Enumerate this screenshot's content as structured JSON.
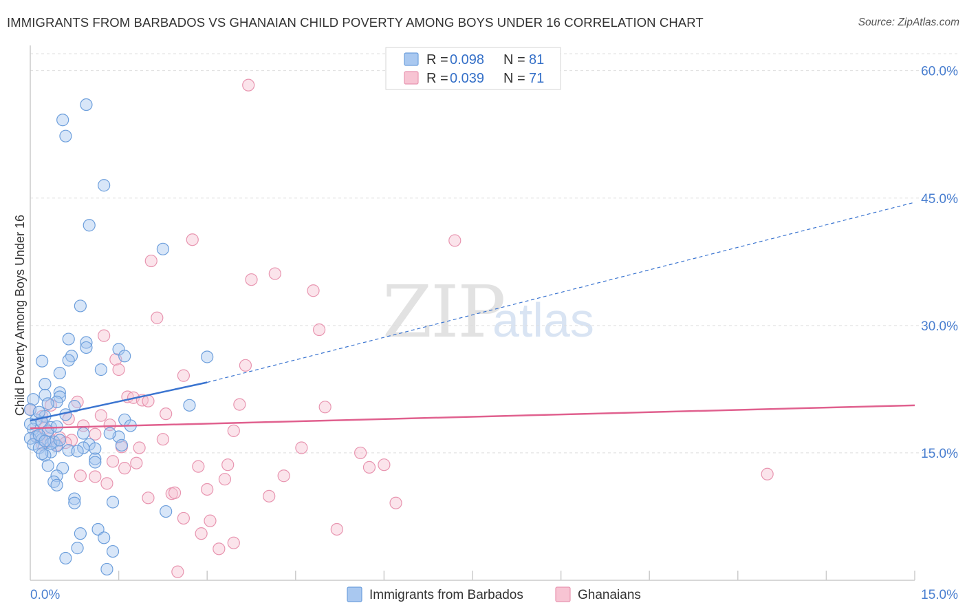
{
  "title": "IMMIGRANTS FROM BARBADOS VS GHANAIAN CHILD POVERTY AMONG BOYS UNDER 16 CORRELATION CHART",
  "source": "Source: ZipAtlas.com",
  "watermark": {
    "zip": "ZIP",
    "atlas": "atlas"
  },
  "colors": {
    "blue_fill": "#a9c8f0",
    "blue_stroke": "#6d9fdc",
    "blue_line": "#3a74d0",
    "pink_fill": "#f7c4d3",
    "pink_stroke": "#e895b0",
    "pink_line": "#e0608e",
    "grid": "#dddddd",
    "axis": "#cccccc",
    "tick_text": "#4a7fd0"
  },
  "legend": {
    "rows": [
      {
        "r_label": "R =",
        "r_value": "0.098",
        "n_label": "N =",
        "n_value": "81"
      },
      {
        "r_label": "R =",
        "r_value": "0.039",
        "n_label": "N =",
        "n_value": "71"
      }
    ]
  },
  "chart_data": {
    "type": "scatter",
    "title": "IMMIGRANTS FROM BARBADOS VS GHANAIAN CHILD POVERTY AMONG BOYS UNDER 16 CORRELATION CHART",
    "xlabel": "",
    "ylabel": "Child Poverty Among Boys Under 16",
    "xlim": [
      0,
      15
    ],
    "ylim": [
      0,
      62
    ],
    "x_tick_labels": [
      {
        "value": 0,
        "label": "0.0%"
      },
      {
        "value": 15,
        "label": "15.0%"
      }
    ],
    "x_minor_ticks": [
      1.5,
      3.0,
      4.5,
      6.0,
      7.5,
      9.0,
      10.5,
      12.0,
      13.5,
      15.0
    ],
    "y_ticks": [
      {
        "value": 15,
        "label": "15.0%"
      },
      {
        "value": 30,
        "label": "30.0%"
      },
      {
        "value": 45,
        "label": "45.0%"
      },
      {
        "value": 60,
        "label": "60.0%"
      }
    ],
    "grid": true,
    "series": [
      {
        "name": "Immigrants from Barbados",
        "color": "blue",
        "r": 0.098,
        "n": 81,
        "trend": {
          "x0": 0.0,
          "y0": 18.8,
          "x1": 3.0,
          "y1": 23.3,
          "solid_until": 3.0,
          "x_end": 15.0,
          "y_end": 44.5
        },
        "points": [
          [
            0.55,
            54.2
          ],
          [
            0.95,
            56.0
          ],
          [
            0.6,
            52.3
          ],
          [
            1.25,
            46.5
          ],
          [
            1.0,
            41.8
          ],
          [
            2.25,
            39.0
          ],
          [
            0.85,
            32.3
          ],
          [
            3.0,
            26.3
          ],
          [
            0.65,
            28.4
          ],
          [
            0.95,
            28.0
          ],
          [
            0.95,
            27.4
          ],
          [
            1.5,
            27.2
          ],
          [
            1.6,
            26.4
          ],
          [
            0.7,
            26.4
          ],
          [
            0.65,
            25.9
          ],
          [
            0.2,
            25.8
          ],
          [
            1.2,
            24.8
          ],
          [
            0.5,
            24.4
          ],
          [
            0.25,
            23.1
          ],
          [
            0.5,
            22.1
          ],
          [
            0.25,
            21.8
          ],
          [
            0.5,
            21.6
          ],
          [
            0.05,
            21.3
          ],
          [
            0.45,
            21.0
          ],
          [
            0.3,
            20.8
          ],
          [
            2.7,
            20.6
          ],
          [
            0.75,
            20.5
          ],
          [
            0.0,
            20.1
          ],
          [
            0.6,
            19.5
          ],
          [
            0.25,
            19.3
          ],
          [
            0.1,
            18.9
          ],
          [
            0.2,
            18.6
          ],
          [
            1.6,
            18.9
          ],
          [
            1.7,
            18.2
          ],
          [
            0.05,
            17.8
          ],
          [
            0.35,
            18.0
          ],
          [
            0.9,
            17.3
          ],
          [
            0.1,
            16.9
          ],
          [
            0.2,
            16.6
          ],
          [
            1.5,
            16.9
          ],
          [
            0.0,
            16.7
          ],
          [
            0.4,
            16.3
          ],
          [
            0.05,
            16.0
          ],
          [
            1.0,
            16.0
          ],
          [
            0.45,
            15.8
          ],
          [
            0.15,
            15.6
          ],
          [
            0.9,
            15.6
          ],
          [
            1.1,
            15.5
          ],
          [
            0.35,
            15.1
          ],
          [
            0.25,
            14.7
          ],
          [
            1.1,
            14.3
          ],
          [
            1.1,
            13.9
          ],
          [
            0.3,
            13.5
          ],
          [
            0.55,
            13.2
          ],
          [
            0.45,
            12.3
          ],
          [
            0.4,
            11.6
          ],
          [
            0.45,
            11.2
          ],
          [
            0.75,
            9.6
          ],
          [
            0.75,
            9.1
          ],
          [
            1.4,
            9.2
          ],
          [
            2.3,
            8.1
          ],
          [
            1.15,
            6.0
          ],
          [
            0.85,
            5.5
          ],
          [
            1.25,
            5.0
          ],
          [
            0.8,
            3.8
          ],
          [
            1.4,
            3.4
          ],
          [
            0.6,
            2.6
          ],
          [
            1.3,
            1.3
          ],
          [
            0.3,
            17.6
          ],
          [
            0.15,
            19.8
          ],
          [
            0.65,
            15.3
          ],
          [
            1.55,
            15.9
          ],
          [
            0.0,
            18.4
          ],
          [
            0.35,
            16.1
          ],
          [
            0.5,
            16.5
          ],
          [
            1.35,
            17.3
          ],
          [
            0.2,
            14.9
          ],
          [
            0.45,
            18.1
          ],
          [
            0.15,
            17.1
          ],
          [
            0.25,
            16.4
          ],
          [
            0.8,
            15.2
          ]
        ]
      },
      {
        "name": "Ghanaians",
        "color": "pink",
        "r": 0.039,
        "n": 71,
        "trend": {
          "x0": 0.0,
          "y0": 17.9,
          "x1": 15.0,
          "y1": 20.6
        },
        "points": [
          [
            3.7,
            58.3
          ],
          [
            2.75,
            40.1
          ],
          [
            7.2,
            40.0
          ],
          [
            2.05,
            37.6
          ],
          [
            4.15,
            36.1
          ],
          [
            3.75,
            35.4
          ],
          [
            4.8,
            34.1
          ],
          [
            2.15,
            30.9
          ],
          [
            4.9,
            29.5
          ],
          [
            1.25,
            28.8
          ],
          [
            1.45,
            26.0
          ],
          [
            3.65,
            25.3
          ],
          [
            1.5,
            24.8
          ],
          [
            2.6,
            24.1
          ],
          [
            1.65,
            21.6
          ],
          [
            1.75,
            21.5
          ],
          [
            1.9,
            21.2
          ],
          [
            2.0,
            21.1
          ],
          [
            0.8,
            21.0
          ],
          [
            3.55,
            20.7
          ],
          [
            5.0,
            20.4
          ],
          [
            0.35,
            20.6
          ],
          [
            0.0,
            20.1
          ],
          [
            2.3,
            19.6
          ],
          [
            1.2,
            19.4
          ],
          [
            0.65,
            19.0
          ],
          [
            0.2,
            19.3
          ],
          [
            1.35,
            18.3
          ],
          [
            0.9,
            18.2
          ],
          [
            0.25,
            17.9
          ],
          [
            0.3,
            17.4
          ],
          [
            3.45,
            17.6
          ],
          [
            1.1,
            17.2
          ],
          [
            0.5,
            16.8
          ],
          [
            2.25,
            16.6
          ],
          [
            0.7,
            16.5
          ],
          [
            0.6,
            16.2
          ],
          [
            0.2,
            16.0
          ],
          [
            1.55,
            15.7
          ],
          [
            1.85,
            15.6
          ],
          [
            4.6,
            15.6
          ],
          [
            5.6,
            15.0
          ],
          [
            6.0,
            13.6
          ],
          [
            1.4,
            14.0
          ],
          [
            1.8,
            13.8
          ],
          [
            3.35,
            13.6
          ],
          [
            2.85,
            13.4
          ],
          [
            5.75,
            13.3
          ],
          [
            1.6,
            13.2
          ],
          [
            0.85,
            12.3
          ],
          [
            1.1,
            12.2
          ],
          [
            4.3,
            12.3
          ],
          [
            12.5,
            12.5
          ],
          [
            3.3,
            11.9
          ],
          [
            1.3,
            11.4
          ],
          [
            2.0,
            9.7
          ],
          [
            2.4,
            10.2
          ],
          [
            2.45,
            10.3
          ],
          [
            3.0,
            10.7
          ],
          [
            4.05,
            9.9
          ],
          [
            6.2,
            9.1
          ],
          [
            2.6,
            7.3
          ],
          [
            3.05,
            7.0
          ],
          [
            2.9,
            5.5
          ],
          [
            5.2,
            6.0
          ],
          [
            3.2,
            3.7
          ],
          [
            3.45,
            4.4
          ],
          [
            2.5,
            1.0
          ],
          [
            0.1,
            17.0
          ],
          [
            0.45,
            15.9
          ],
          [
            0.3,
            16.3
          ]
        ]
      }
    ]
  }
}
